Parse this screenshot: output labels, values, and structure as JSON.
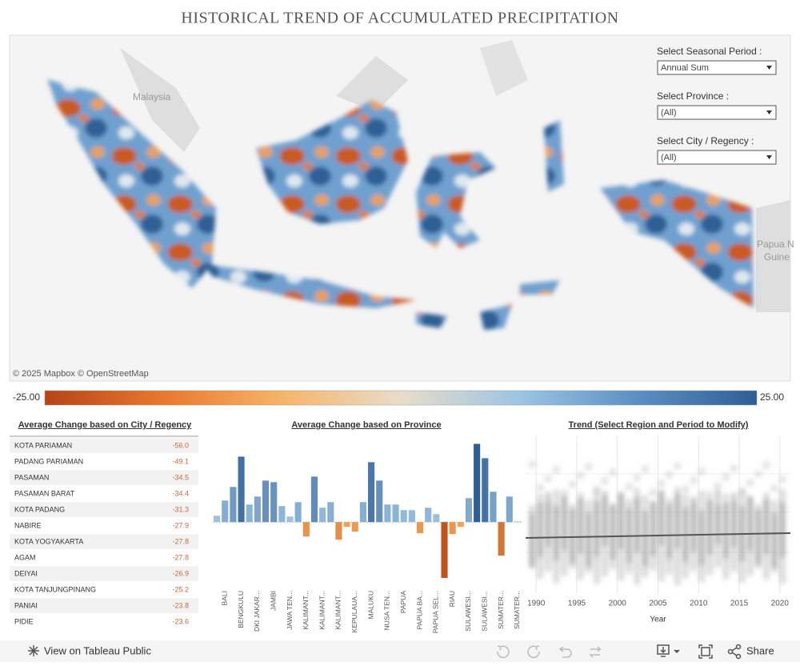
{
  "header": {
    "title": "HISTORICAL TREND OF ACCUMULATED PRECIPITATION"
  },
  "map": {
    "labels": [
      "Malaysia",
      "Papua N",
      "Guine"
    ],
    "attribution": "© 2025 Mapbox © OpenStreetMap"
  },
  "filters": [
    {
      "label": "Select Seasonal Period :",
      "value": "Annual Sum"
    },
    {
      "label": "Select Province :",
      "value": "(All)"
    },
    {
      "label": "Select City / Regency :",
      "value": "(All)"
    }
  ],
  "legend": {
    "min_label": "-25.00",
    "max_label": "25.00",
    "colors": [
      "#b5441a",
      "#e8782e",
      "#f7b468",
      "#e9dccb",
      "#9cc5e3",
      "#5b8fc4",
      "#2f5e95"
    ]
  },
  "table": {
    "title": "Average Change based on City / Regency",
    "rows": [
      [
        "KOTA PARIAMAN",
        "-56.0"
      ],
      [
        "PADANG PARIAMAN",
        "-49.1"
      ],
      [
        "PASAMAN",
        "-34.5"
      ],
      [
        "PASAMAN BARAT",
        "-34.4"
      ],
      [
        "KOTA PADANG",
        "-31.3"
      ],
      [
        "NABIRE",
        "-27.9"
      ],
      [
        "KOTA YOGYAKARTA",
        "-27.8"
      ],
      [
        "AGAM",
        "-27.8"
      ],
      [
        "DEIYAI",
        "-26.9"
      ],
      [
        "KOTA TANJUNGPINANG",
        "-25.2"
      ],
      [
        "PANIAI",
        "-23.8"
      ],
      [
        "PIDIE",
        "-23.6"
      ]
    ]
  },
  "chart_data": [
    {
      "type": "bar",
      "title": "Average Change based on Province",
      "categories": [
        null,
        "BALI",
        null,
        "BENGKULU",
        null,
        "DKI JAKAR...",
        null,
        "JAMBI",
        null,
        "JAWA TEN...",
        null,
        "KALIMANT...",
        null,
        "KALIMANT...",
        null,
        "KALIMANT...",
        null,
        "KEPULAUA...",
        null,
        "MALUKU",
        null,
        "NUSA TEN...",
        null,
        "PAPUA",
        null,
        "PAPUA BA...",
        null,
        "PAPUA SEL...",
        null,
        "RIAU",
        null,
        "SULAWESI...",
        null,
        "SULAWESI...",
        null,
        "SUMATER...",
        null,
        "SUMATER..."
      ],
      "values": [
        1.6,
        5.4,
        8.8,
        16.4,
        4.4,
        6.4,
        10.4,
        10.0,
        4.0,
        1.4,
        5.0,
        -3.6,
        11.4,
        3.6,
        5.0,
        -4.4,
        -1.2,
        -2.4,
        5.0,
        15.0,
        10.4,
        4.4,
        4.4,
        3.0,
        3.0,
        -2.8,
        3.6,
        2.0,
        -14.0,
        -3.0,
        -1.2,
        6.0,
        19.6,
        16.0,
        7.6,
        -8.4,
        6.4,
        0.2
      ],
      "positive_colors": [
        "#a6cbe6",
        "#2f5e95"
      ],
      "negative_colors": [
        "#f5a95a",
        "#c1531c"
      ],
      "ylim": [
        -16,
        21.5
      ]
    },
    {
      "type": "scatter",
      "title": "Trend (Select Region and Period to Modify)",
      "x_label": "Year",
      "xlim": [
        1988.7,
        2021.3
      ],
      "xticks": [
        1990,
        1995,
        2000,
        2005,
        2010,
        2015,
        2020
      ],
      "grid": true
    }
  ],
  "footer": {
    "link": "View on Tableau Public",
    "share": "Share"
  }
}
